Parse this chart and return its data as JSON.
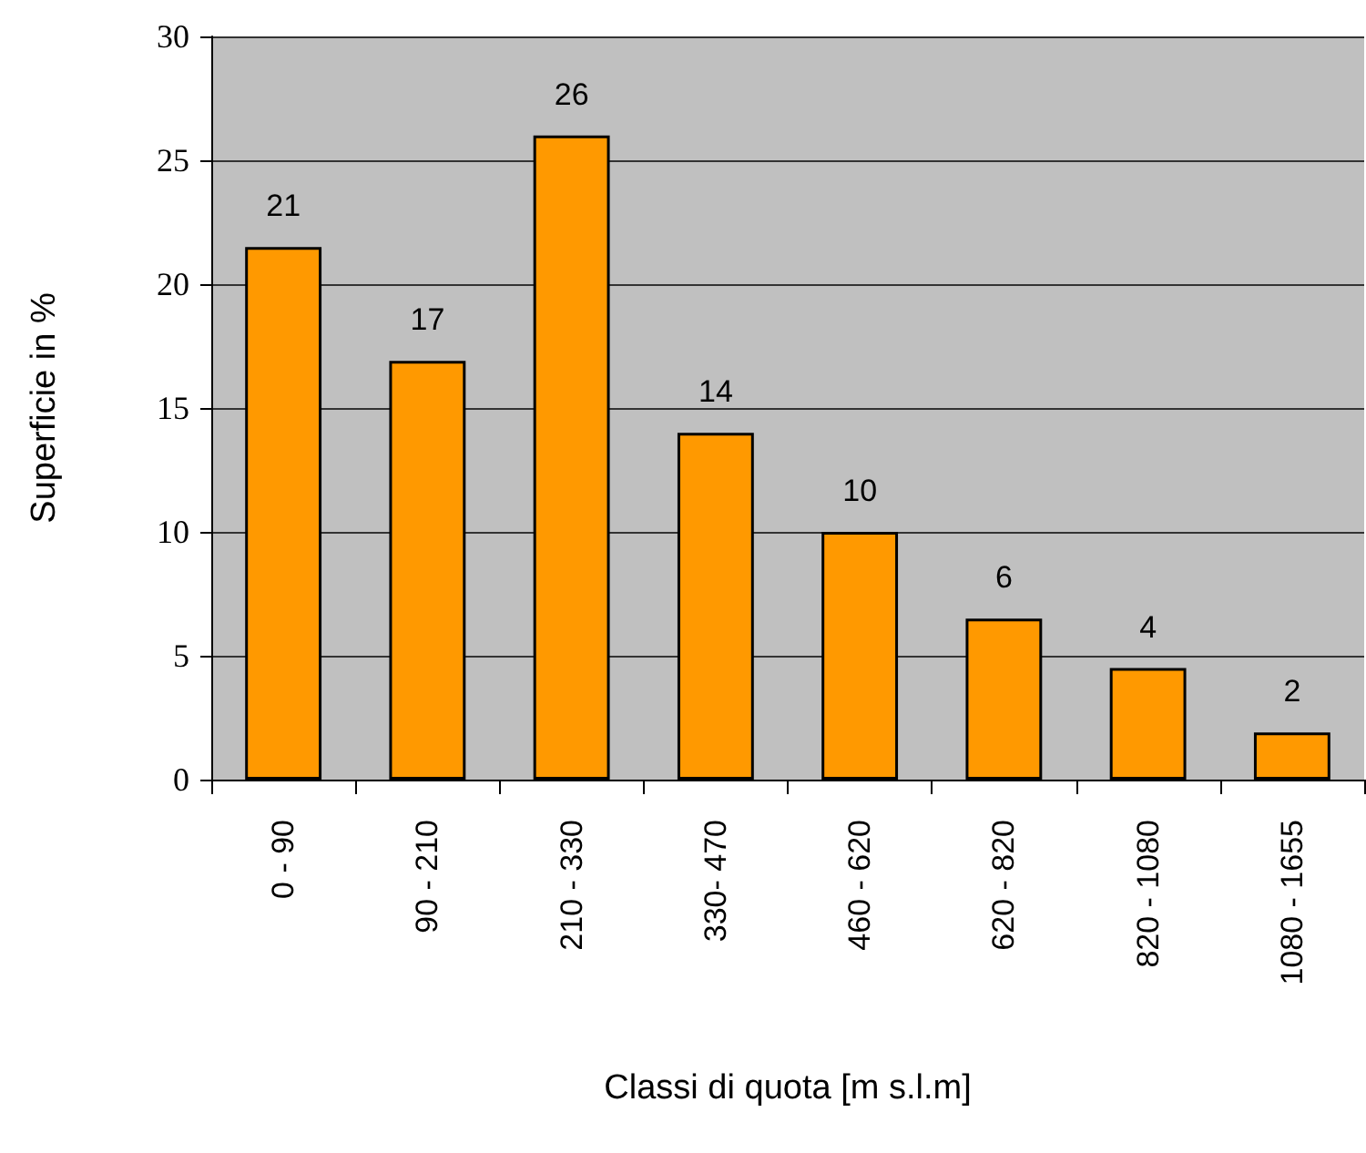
{
  "chart_data": {
    "type": "bar",
    "xlabel": "Classi di quota [m s.l.m]",
    "ylabel": "Superficie in %",
    "categories": [
      "0 - 90",
      "90 - 210",
      "210 - 330",
      "330- 470",
      "460 - 620",
      "620 - 820",
      "820 - 1080",
      "1080 - 1655"
    ],
    "values": [
      21.5,
      16.9,
      26,
      14,
      10,
      6.5,
      4.5,
      1.9
    ],
    "value_labels": [
      "21",
      "17",
      "26",
      "14",
      "10",
      "6",
      "4",
      "2"
    ],
    "color": "#ff9900",
    "ylim": [
      0,
      30
    ],
    "yticks": [
      0,
      5,
      10,
      15,
      20,
      25,
      30
    ],
    "grid": "y"
  }
}
